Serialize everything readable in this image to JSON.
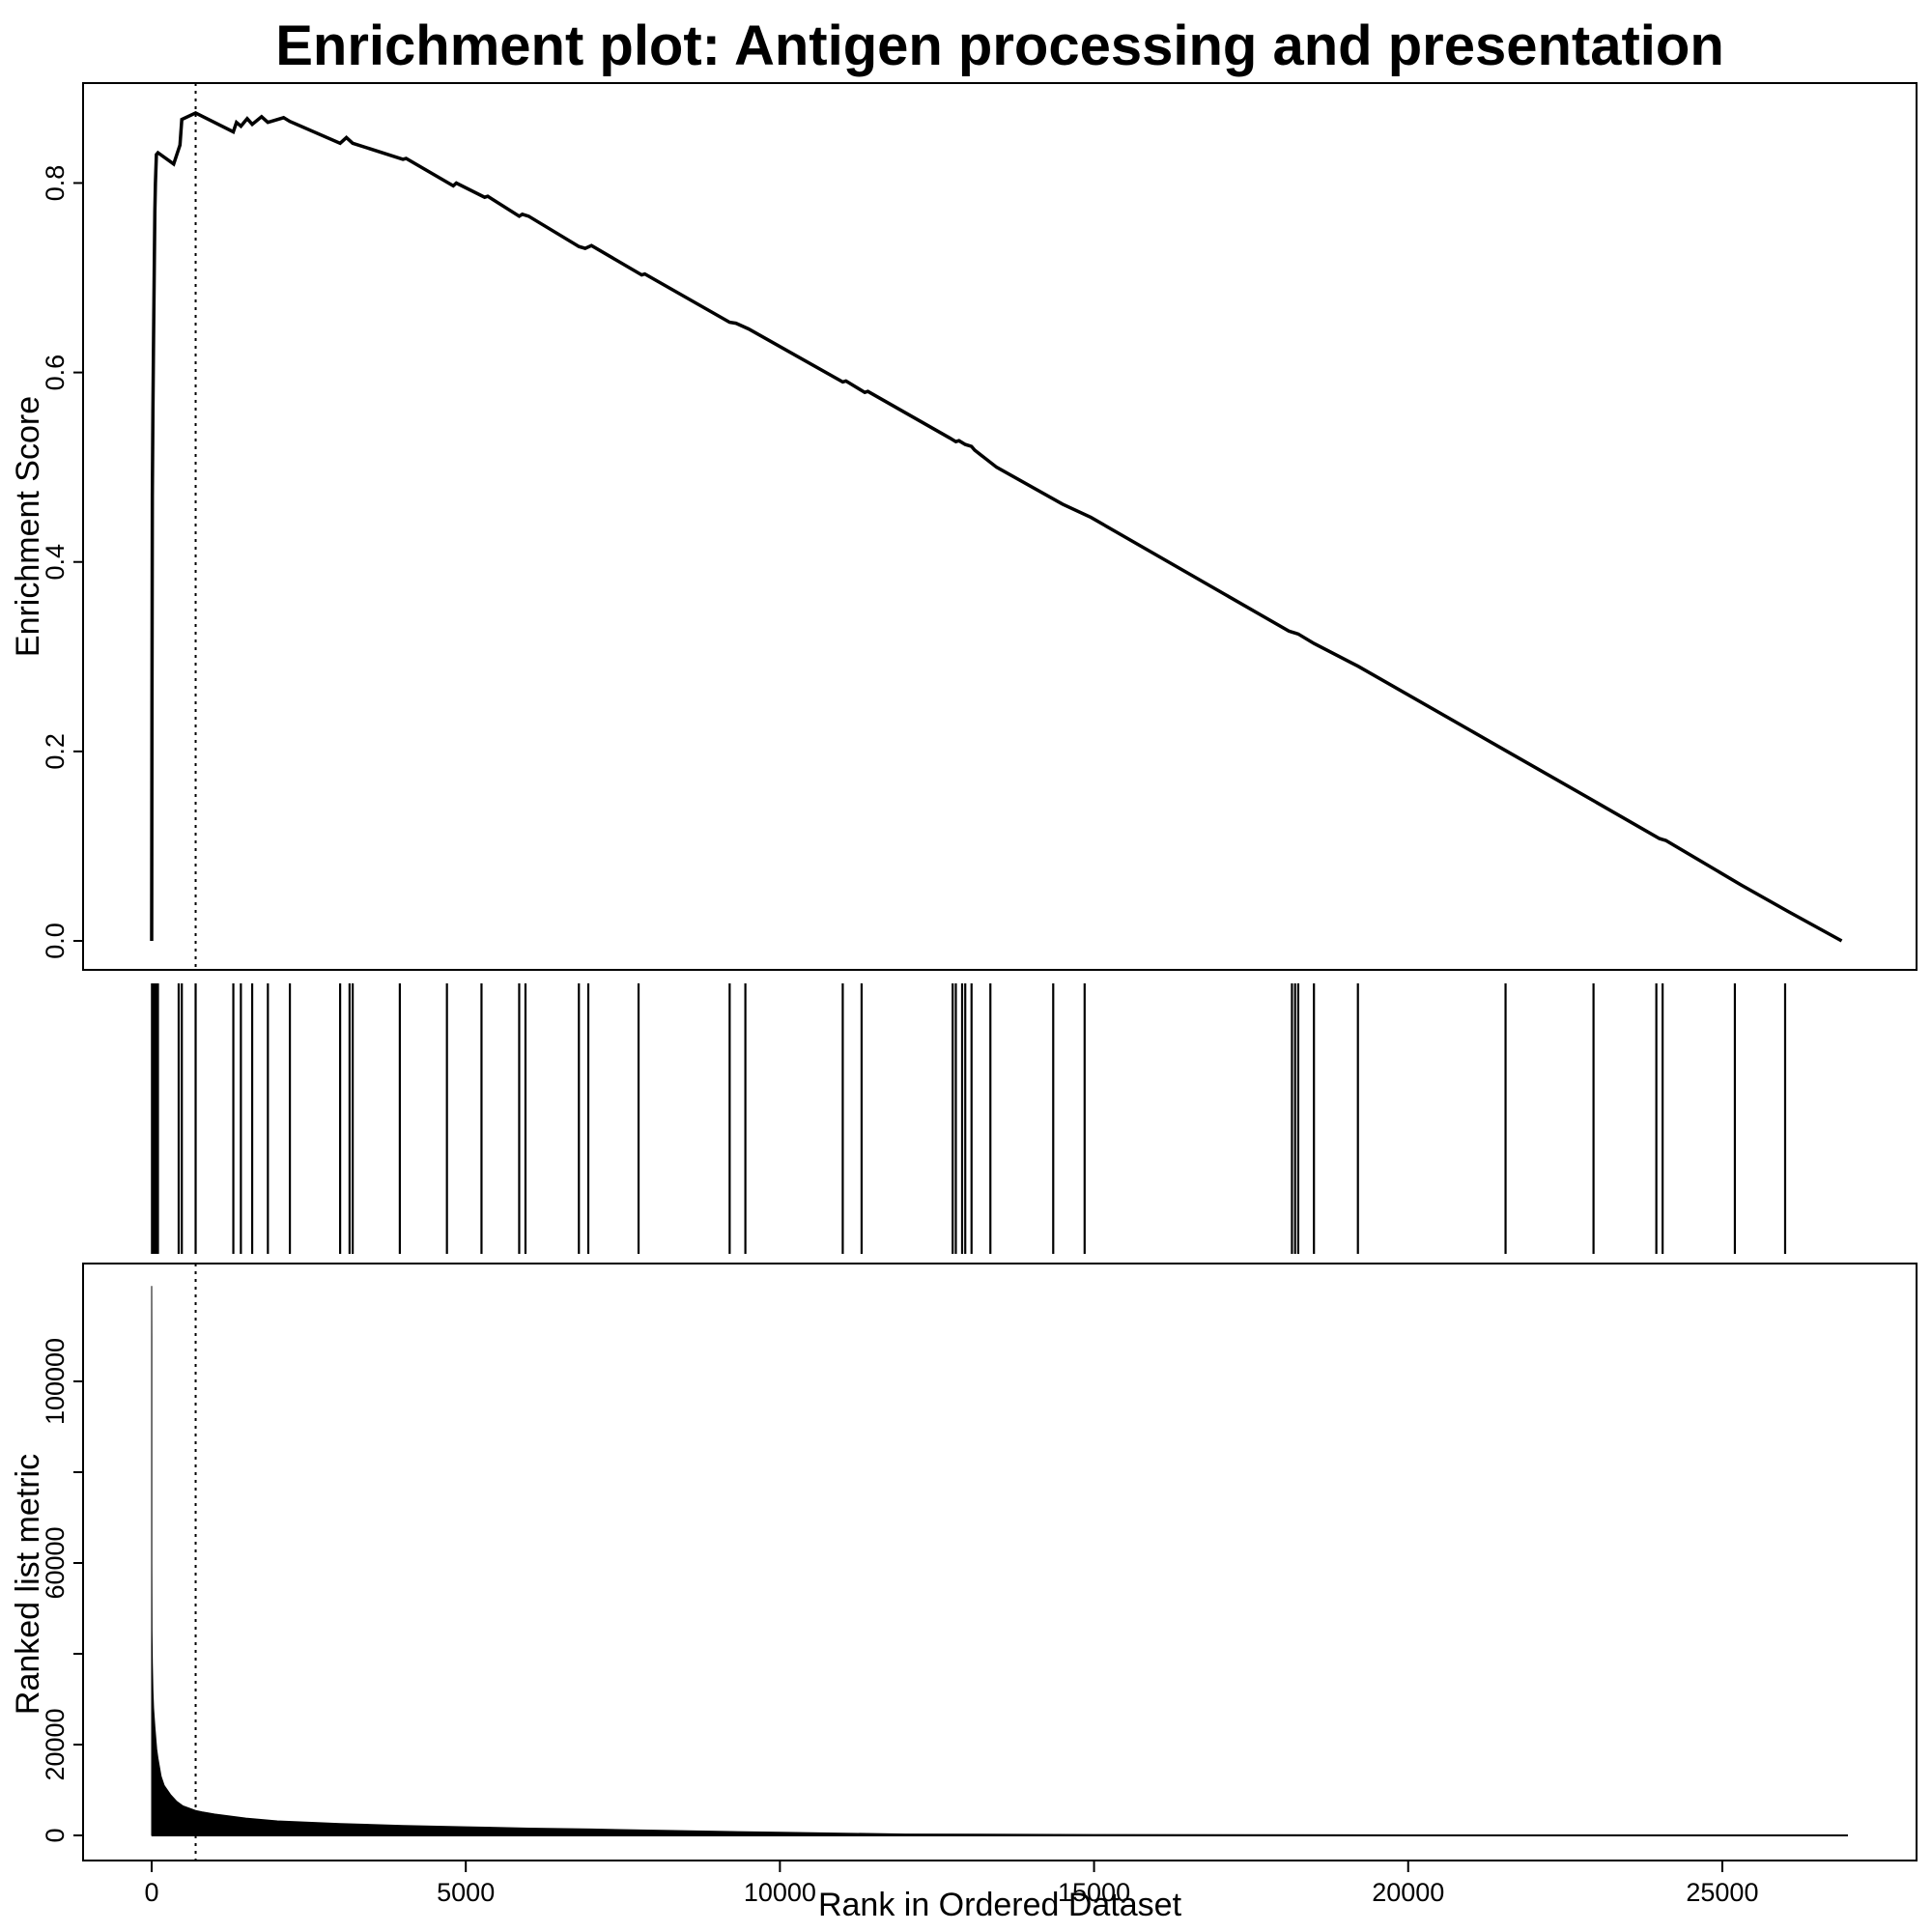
{
  "chart_data": {
    "type": "line",
    "title": "Enrichment plot: Antigen processing and presentation",
    "xlabel": "Rank in Ordered Dataset",
    "xlim": [
      0,
      27000
    ],
    "x_ticks": [
      0,
      5000,
      10000,
      15000,
      20000,
      25000
    ],
    "leading_edge_rank": 700,
    "panels": [
      {
        "name": "enrichment",
        "ylabel": "Enrichment Score",
        "ylim": [
          0,
          0.88
        ],
        "y_ticks": [
          0.0,
          0.2,
          0.4,
          0.6,
          0.8
        ],
        "y_tick_labels": [
          "0.0",
          "0.2",
          "0.4",
          "0.6",
          "0.8"
        ],
        "series": [
          {
            "x": [
              0,
              5,
              10,
              20,
              30,
              40,
              50,
              60,
              75,
              100,
              350,
              450,
              480,
              700,
              1300,
              1350,
              1420,
              1520,
              1600,
              1750,
              1850,
              2100,
              2200,
              3000,
              3100,
              3200,
              4000,
              4050,
              4800,
              4850,
              5300,
              5350,
              5850,
              5900,
              6000,
              6800,
              6900,
              7000,
              7800,
              7850,
              9200,
              9300,
              9500,
              11000,
              11050,
              11350,
              11400,
              12700,
              12800,
              12850,
              12950,
              13050,
              13100,
              13450,
              14500,
              14950,
              18100,
              18150,
              18200,
              18250,
              18500,
              19200,
              21600,
              23000,
              24000,
              24050,
              24100,
              25300,
              26050,
              26900
            ],
            "y": [
              0.0,
              0.24,
              0.47,
              0.56,
              0.64,
              0.7,
              0.77,
              0.8,
              0.83,
              0.832,
              0.82,
              0.84,
              0.867,
              0.874,
              0.854,
              0.864,
              0.86,
              0.868,
              0.862,
              0.87,
              0.864,
              0.869,
              0.865,
              0.842,
              0.848,
              0.842,
              0.825,
              0.826,
              0.797,
              0.8,
              0.785,
              0.786,
              0.765,
              0.767,
              0.765,
              0.733,
              0.731,
              0.734,
              0.703,
              0.704,
              0.653,
              0.652,
              0.646,
              0.59,
              0.591,
              0.579,
              0.58,
              0.531,
              0.527,
              0.528,
              0.524,
              0.522,
              0.518,
              0.5,
              0.461,
              0.447,
              0.327,
              0.326,
              0.325,
              0.324,
              0.314,
              0.29,
              0.199,
              0.146,
              0.108,
              0.107,
              0.106,
              0.059,
              0.031,
              0.0
            ]
          }
        ]
      },
      {
        "name": "hits",
        "type": "barcode",
        "hit_ranks": [
          5,
          10,
          15,
          20,
          25,
          30,
          35,
          40,
          45,
          50,
          55,
          60,
          65,
          70,
          75,
          80,
          85,
          90,
          95,
          100,
          430,
          480,
          700,
          1300,
          1420,
          1600,
          1850,
          2200,
          3000,
          3150,
          3200,
          3950,
          4700,
          5250,
          5850,
          5950,
          6800,
          6950,
          7750,
          9200,
          9450,
          11000,
          11300,
          12750,
          12800,
          12900,
          12950,
          13050,
          13350,
          14350,
          14850,
          18150,
          18200,
          18250,
          18500,
          19200,
          21550,
          22950,
          23950,
          24050,
          25200,
          26000
        ]
      },
      {
        "name": "ranked-metric",
        "type": "area",
        "ylabel": "Ranked list metric",
        "ylim": [
          0,
          120000
        ],
        "y_ticks": [
          0,
          20000,
          40000,
          60000,
          80000,
          100000
        ],
        "y_tick_labels": [
          "0",
          "20000",
          "",
          "60000",
          "",
          "100000"
        ],
        "series": [
          {
            "x": [
              0,
              1,
              2,
              5,
              10,
              20,
              30,
              50,
              80,
              100,
              150,
              200,
              300,
              400,
              500,
              600,
              700,
              800,
              1000,
              1500,
              2000,
              3000,
              4000,
              5000,
              6000,
              7000,
              8000,
              9000,
              10000,
              11000,
              12000,
              15000,
              20000,
              25000,
              27000
            ],
            "y": [
              121000,
              110000,
              60000,
              45000,
              38000,
              32000,
              28000,
              24000,
              19000,
              17000,
              13000,
              11000,
              9000,
              7500,
              6500,
              6000,
              5500,
              5200,
              4700,
              3800,
              3200,
              2600,
              2200,
              1900,
              1600,
              1400,
              1150,
              900,
              700,
              500,
              300,
              200,
              100,
              50,
              0
            ]
          }
        ]
      }
    ],
    "grid": false
  }
}
